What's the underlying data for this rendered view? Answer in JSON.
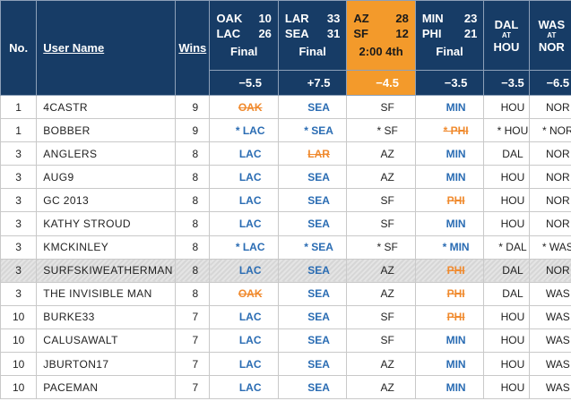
{
  "header": {
    "no_label": "No.",
    "user_label": "User Name",
    "wins_label": "Wins",
    "at_label": "AT",
    "games": [
      {
        "away": "OAK",
        "away_score": "10",
        "home": "LAC",
        "home_score": "26",
        "status": "Final",
        "spread": "−5.5"
      },
      {
        "away": "LAR",
        "away_score": "33",
        "home": "SEA",
        "home_score": "31",
        "status": "Final",
        "spread": "+7.5"
      },
      {
        "away": "AZ",
        "away_score": "28",
        "home": "SF",
        "home_score": "12",
        "status": "2:00 4th",
        "spread": "−4.5"
      },
      {
        "away": "MIN",
        "away_score": "23",
        "home": "PHI",
        "home_score": "21",
        "status": "Final",
        "spread": "−3.5"
      },
      {
        "away": "DAL",
        "home": "HOU",
        "spread": "−3.5"
      },
      {
        "away": "WAS",
        "home": "NOR",
        "spread": "−6.5"
      }
    ]
  },
  "colors": {
    "header_bg": "#173c66",
    "live_bg": "#f39a2b",
    "win": "#2a6cb3",
    "loss": "#f08a2e"
  },
  "rows": [
    {
      "no": "1",
      "user": "4CASTR",
      "wins": "9",
      "picks": [
        {
          "text": "OAK",
          "state": "loss"
        },
        {
          "text": "SEA",
          "state": "win"
        },
        {
          "text": "SF",
          "state": "pend"
        },
        {
          "text": "MIN",
          "state": "win"
        },
        {
          "text": "HOU",
          "state": "pend"
        },
        {
          "text": "NOR",
          "state": "pend"
        }
      ]
    },
    {
      "no": "1",
      "user": "BOBBER",
      "wins": "9",
      "picks": [
        {
          "text": "* LAC",
          "state": "win"
        },
        {
          "text": "* SEA",
          "state": "win"
        },
        {
          "text": "* SF",
          "state": "pend"
        },
        {
          "text": "* PHI",
          "state": "loss"
        },
        {
          "text": "* HOU",
          "state": "pend"
        },
        {
          "text": "* NOR",
          "state": "pend"
        }
      ]
    },
    {
      "no": "3",
      "user": "ANGLERS",
      "wins": "8",
      "picks": [
        {
          "text": "LAC",
          "state": "win"
        },
        {
          "text": "LAR",
          "state": "loss"
        },
        {
          "text": "AZ",
          "state": "pend"
        },
        {
          "text": "MIN",
          "state": "win"
        },
        {
          "text": "DAL",
          "state": "pend"
        },
        {
          "text": "NOR",
          "state": "pend"
        }
      ]
    },
    {
      "no": "3",
      "user": "AUG9",
      "wins": "8",
      "picks": [
        {
          "text": "LAC",
          "state": "win"
        },
        {
          "text": "SEA",
          "state": "win"
        },
        {
          "text": "AZ",
          "state": "pend"
        },
        {
          "text": "MIN",
          "state": "win"
        },
        {
          "text": "HOU",
          "state": "pend"
        },
        {
          "text": "NOR",
          "state": "pend"
        }
      ]
    },
    {
      "no": "3",
      "user": "GC 2013",
      "wins": "8",
      "picks": [
        {
          "text": "LAC",
          "state": "win"
        },
        {
          "text": "SEA",
          "state": "win"
        },
        {
          "text": "SF",
          "state": "pend"
        },
        {
          "text": "PHI",
          "state": "loss"
        },
        {
          "text": "HOU",
          "state": "pend"
        },
        {
          "text": "NOR",
          "state": "pend"
        }
      ]
    },
    {
      "no": "3",
      "user": "KATHY STROUD",
      "wins": "8",
      "picks": [
        {
          "text": "LAC",
          "state": "win"
        },
        {
          "text": "SEA",
          "state": "win"
        },
        {
          "text": "SF",
          "state": "pend"
        },
        {
          "text": "MIN",
          "state": "win"
        },
        {
          "text": "HOU",
          "state": "pend"
        },
        {
          "text": "NOR",
          "state": "pend"
        }
      ]
    },
    {
      "no": "3",
      "user": "KMCKINLEY",
      "wins": "8",
      "picks": [
        {
          "text": "* LAC",
          "state": "win"
        },
        {
          "text": "* SEA",
          "state": "win"
        },
        {
          "text": "* SF",
          "state": "pend"
        },
        {
          "text": "* MIN",
          "state": "win"
        },
        {
          "text": "* DAL",
          "state": "pend"
        },
        {
          "text": "* WAS",
          "state": "pend"
        }
      ]
    },
    {
      "no": "3",
      "user": "SURFSKIWEATHERMAN",
      "wins": "8",
      "highlight": true,
      "picks": [
        {
          "text": "LAC",
          "state": "win"
        },
        {
          "text": "SEA",
          "state": "win"
        },
        {
          "text": "AZ",
          "state": "pend"
        },
        {
          "text": "PHI",
          "state": "loss"
        },
        {
          "text": "DAL",
          "state": "pend"
        },
        {
          "text": "NOR",
          "state": "pend"
        }
      ]
    },
    {
      "no": "3",
      "user": "THE INVISIBLE MAN",
      "wins": "8",
      "picks": [
        {
          "text": "OAK",
          "state": "loss"
        },
        {
          "text": "SEA",
          "state": "win"
        },
        {
          "text": "AZ",
          "state": "pend"
        },
        {
          "text": "PHI",
          "state": "loss"
        },
        {
          "text": "DAL",
          "state": "pend"
        },
        {
          "text": "WAS",
          "state": "pend"
        }
      ]
    },
    {
      "no": "10",
      "user": "BURKE33",
      "wins": "7",
      "picks": [
        {
          "text": "LAC",
          "state": "win"
        },
        {
          "text": "SEA",
          "state": "win"
        },
        {
          "text": "SF",
          "state": "pend"
        },
        {
          "text": "PHI",
          "state": "loss"
        },
        {
          "text": "HOU",
          "state": "pend"
        },
        {
          "text": "WAS",
          "state": "pend"
        }
      ]
    },
    {
      "no": "10",
      "user": "CALUSAWALT",
      "wins": "7",
      "picks": [
        {
          "text": "LAC",
          "state": "win"
        },
        {
          "text": "SEA",
          "state": "win"
        },
        {
          "text": "SF",
          "state": "pend"
        },
        {
          "text": "MIN",
          "state": "win"
        },
        {
          "text": "HOU",
          "state": "pend"
        },
        {
          "text": "WAS",
          "state": "pend"
        }
      ]
    },
    {
      "no": "10",
      "user": "JBURTON17",
      "wins": "7",
      "picks": [
        {
          "text": "LAC",
          "state": "win"
        },
        {
          "text": "SEA",
          "state": "win"
        },
        {
          "text": "AZ",
          "state": "pend"
        },
        {
          "text": "MIN",
          "state": "win"
        },
        {
          "text": "HOU",
          "state": "pend"
        },
        {
          "text": "WAS",
          "state": "pend"
        }
      ]
    },
    {
      "no": "10",
      "user": "PACEMAN",
      "wins": "7",
      "picks": [
        {
          "text": "LAC",
          "state": "win"
        },
        {
          "text": "SEA",
          "state": "win"
        },
        {
          "text": "AZ",
          "state": "pend"
        },
        {
          "text": "MIN",
          "state": "win"
        },
        {
          "text": "HOU",
          "state": "pend"
        },
        {
          "text": "WAS",
          "state": "pend"
        }
      ]
    }
  ]
}
